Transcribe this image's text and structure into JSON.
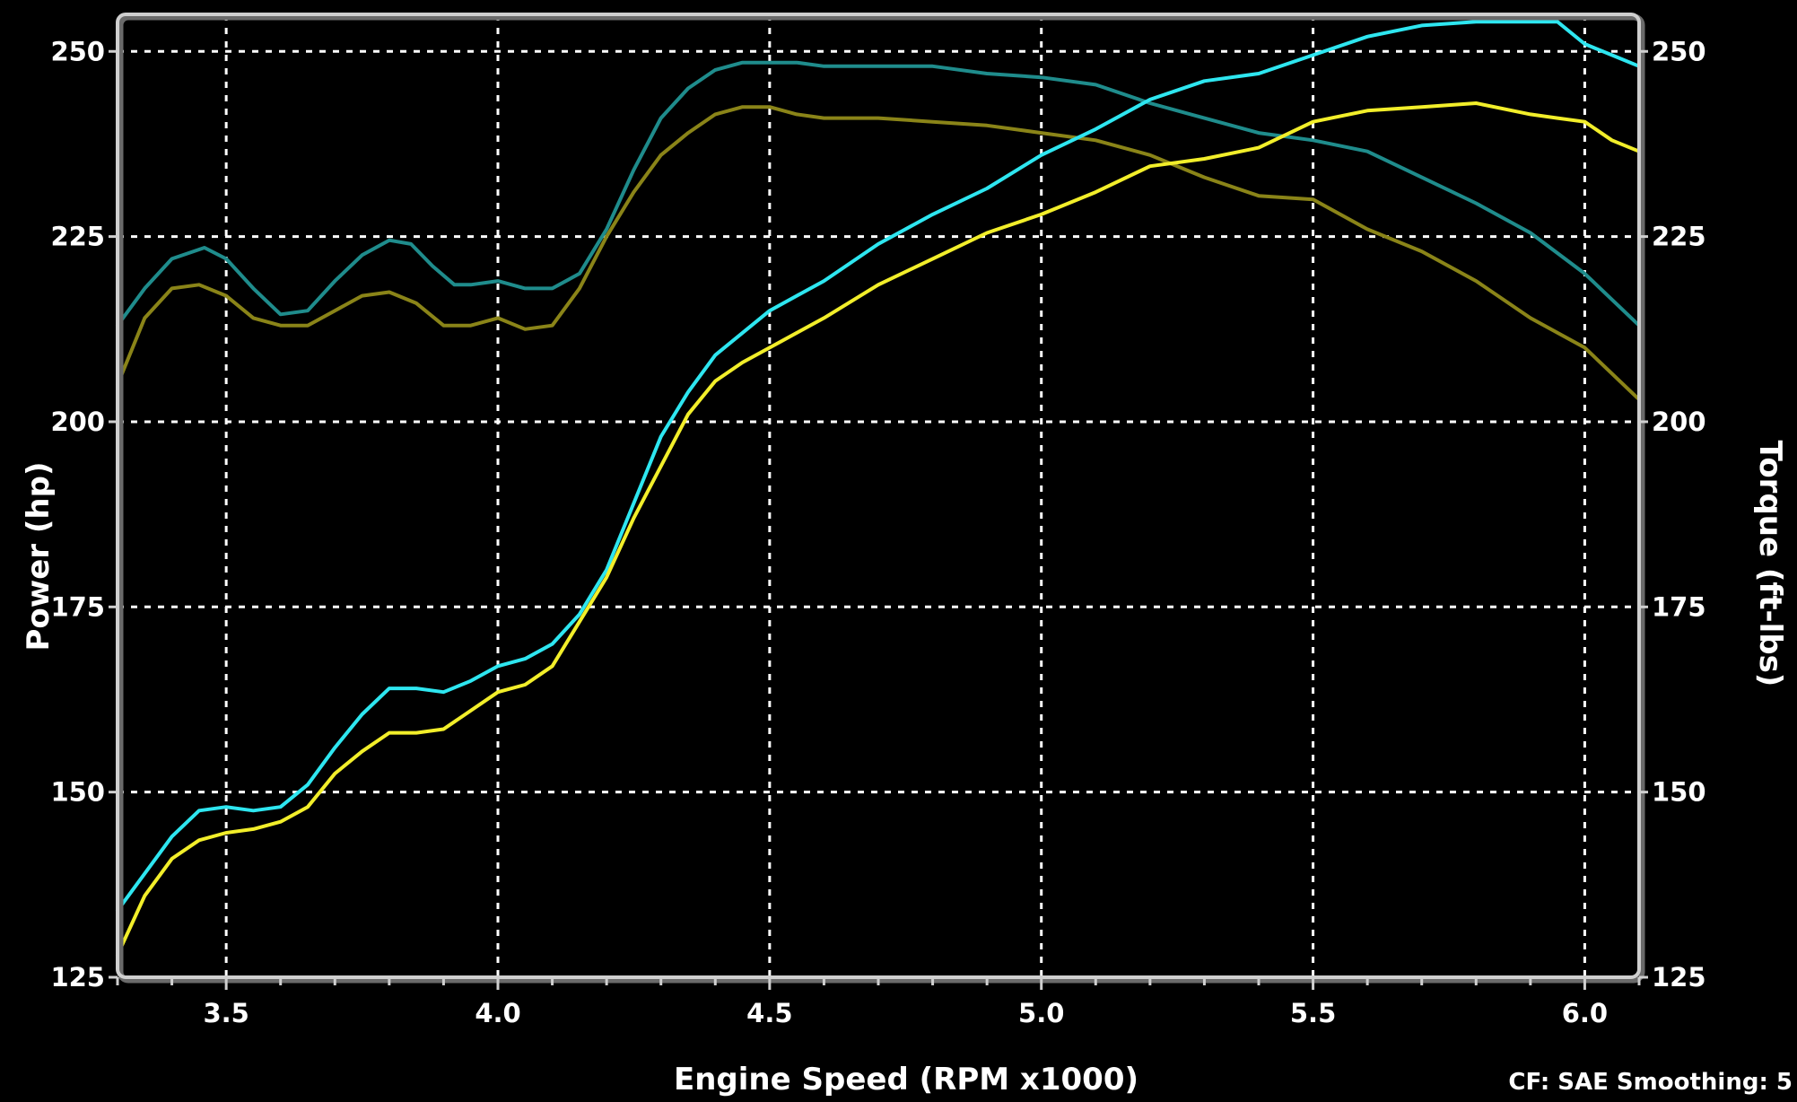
{
  "chart_data": {
    "type": "line",
    "xlabel": "Engine Speed (RPM x1000)",
    "ylabel_left": "Power (hp)",
    "ylabel_right": "Torque (ft-lbs)",
    "xlim": [
      3.3,
      6.1
    ],
    "ylim": [
      125,
      255
    ],
    "x_ticks": [
      "3.5",
      "4.0",
      "4.5",
      "5.0",
      "5.5",
      "6.0"
    ],
    "x_tick_values": [
      3.5,
      4.0,
      4.5,
      5.0,
      5.5,
      6.0
    ],
    "y_ticks_left": [
      "125",
      "150",
      "175",
      "200",
      "225",
      "250"
    ],
    "y_ticks_right": [
      "125",
      "150",
      "175",
      "200",
      "225",
      "250"
    ],
    "y_tick_values": [
      125,
      150,
      175,
      200,
      225,
      250
    ],
    "grid": true,
    "footer": "CF: SAE  Smoothing: 5",
    "colors": {
      "background": "#000000",
      "frame": "#cfcfcf",
      "grid": "#ffffff",
      "power_run_a": "#2ee6f0",
      "power_run_b": "#f2ee2a",
      "torque_run_a": "#1f8c8c",
      "torque_run_b": "#8a8418"
    },
    "series": [
      {
        "key": "torque_run_a",
        "x": [
          3.3,
          3.35,
          3.4,
          3.46,
          3.5,
          3.55,
          3.6,
          3.65,
          3.7,
          3.75,
          3.8,
          3.84,
          3.88,
          3.92,
          3.95,
          4.0,
          4.05,
          4.1,
          4.15,
          4.2,
          4.25,
          4.3,
          4.35,
          4.4,
          4.45,
          4.5,
          4.55,
          4.6,
          4.7,
          4.8,
          4.9,
          5.0,
          5.1,
          5.2,
          5.3,
          5.4,
          5.5,
          5.6,
          5.7,
          5.8,
          5.9,
          6.0,
          6.1
        ],
        "y": [
          213,
          218,
          222,
          223.5,
          222,
          218,
          214.5,
          215,
          219,
          222.5,
          224.5,
          224,
          221,
          218.5,
          218.5,
          219,
          218,
          218,
          220,
          226,
          234,
          241,
          245,
          247.5,
          248.5,
          248.5,
          248.5,
          248,
          248,
          248,
          247,
          246.5,
          245.5,
          243,
          241,
          239,
          238,
          236.5,
          233,
          229.5,
          225.5,
          220,
          213
        ]
      },
      {
        "key": "torque_run_b",
        "x": [
          3.3,
          3.35,
          3.4,
          3.45,
          3.5,
          3.55,
          3.6,
          3.65,
          3.7,
          3.75,
          3.8,
          3.85,
          3.9,
          3.95,
          4.0,
          4.05,
          4.1,
          4.15,
          4.2,
          4.25,
          4.3,
          4.35,
          4.4,
          4.45,
          4.5,
          4.55,
          4.6,
          4.7,
          4.8,
          4.9,
          5.0,
          5.1,
          5.2,
          5.3,
          5.4,
          5.5,
          5.6,
          5.7,
          5.8,
          5.9,
          6.0,
          6.1
        ],
        "y": [
          205,
          214,
          218,
          218.5,
          217,
          214,
          213,
          213,
          215,
          217,
          217.5,
          216,
          213,
          213,
          214,
          212.5,
          213,
          218,
          225,
          231,
          236,
          239,
          241.5,
          242.5,
          242.5,
          241.5,
          241,
          241,
          240.5,
          240,
          239,
          238,
          236,
          233,
          230.5,
          230,
          226,
          223,
          219,
          214,
          210,
          203
        ]
      },
      {
        "key": "power_run_a",
        "x": [
          3.3,
          3.35,
          3.4,
          3.45,
          3.5,
          3.55,
          3.6,
          3.65,
          3.7,
          3.75,
          3.8,
          3.85,
          3.9,
          3.95,
          4.0,
          4.05,
          4.1,
          4.15,
          4.2,
          4.25,
          4.3,
          4.35,
          4.4,
          4.45,
          4.5,
          4.55,
          4.6,
          4.7,
          4.8,
          4.9,
          5.0,
          5.1,
          5.2,
          5.3,
          5.4,
          5.5,
          5.6,
          5.7,
          5.8,
          5.9,
          5.95,
          6.0,
          6.05,
          6.1
        ],
        "y": [
          134,
          139,
          144,
          147.5,
          148,
          147.5,
          148,
          151,
          156,
          160.5,
          164,
          164,
          163.5,
          165,
          167,
          168,
          170,
          174,
          180,
          189,
          198,
          204,
          209,
          212,
          215,
          217,
          219,
          224,
          228,
          231.5,
          236,
          239.5,
          243.5,
          246,
          247,
          249.5,
          252,
          253.5,
          254,
          254,
          254,
          251,
          249.5,
          248
        ]
      },
      {
        "key": "power_run_b",
        "x": [
          3.3,
          3.35,
          3.4,
          3.45,
          3.5,
          3.55,
          3.6,
          3.65,
          3.7,
          3.75,
          3.8,
          3.85,
          3.9,
          3.95,
          4.0,
          4.05,
          4.1,
          4.15,
          4.2,
          4.25,
          4.3,
          4.35,
          4.4,
          4.45,
          4.5,
          4.55,
          4.6,
          4.7,
          4.8,
          4.9,
          5.0,
          5.1,
          5.2,
          5.3,
          5.4,
          5.5,
          5.6,
          5.7,
          5.8,
          5.9,
          5.95,
          6.0,
          6.05,
          6.1
        ],
        "y": [
          128,
          136,
          141,
          143.5,
          144.5,
          145,
          146,
          148,
          152.5,
          155.5,
          158,
          158,
          158.5,
          161,
          163.5,
          164.5,
          167,
          173,
          179,
          187,
          194,
          201,
          205.5,
          208,
          210,
          212,
          214,
          218.5,
          222,
          225.5,
          228,
          231,
          234.5,
          235.5,
          237,
          240.5,
          242,
          242.5,
          243,
          241.5,
          241,
          240.5,
          238,
          236.5
        ]
      }
    ]
  }
}
